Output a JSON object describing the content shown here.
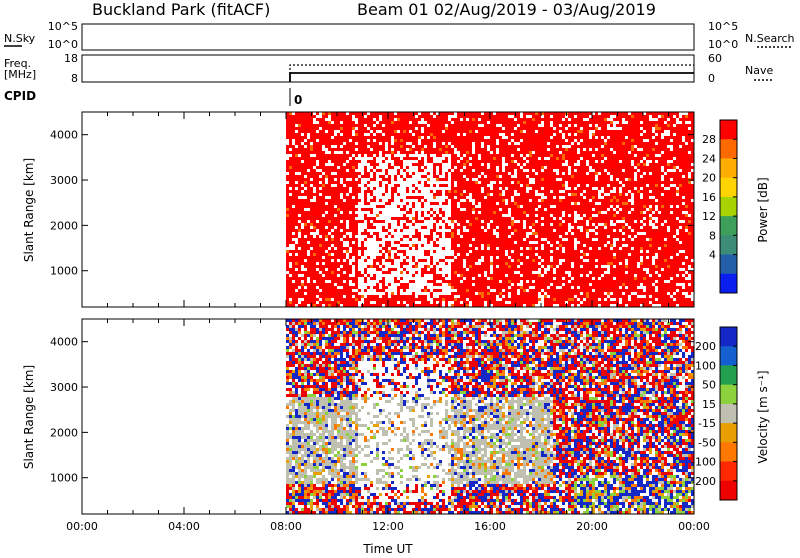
{
  "header": {
    "station": "Buckland Park (fitACF)",
    "beam_info": "Beam 01 02/Aug/2019 - 03/Aug/2019"
  },
  "top_panels": {
    "nsky": {
      "label": "N.Sky",
      "ticks_left": [
        "10^5",
        "10^0"
      ],
      "ticks_right": [
        "10^5",
        "10^0"
      ],
      "right_label": "N.Search"
    },
    "freq": {
      "label_line1": "Freq.",
      "label_line2": "[MHz]",
      "ticks_left": [
        "18",
        "8"
      ],
      "ticks_right": [
        "60",
        "0"
      ],
      "right_label": "Nave"
    },
    "cpid": {
      "label": "CPID",
      "value": "0"
    }
  },
  "chart_data": [
    {
      "type": "heatmap",
      "name": "power",
      "ylabel": "Slant Range [km]",
      "ylim": [
        200,
        4500
      ],
      "yticks": [
        1000,
        2000,
        3000,
        4000
      ],
      "xlabel": "",
      "xlim_hours": [
        0,
        24
      ],
      "data_start_hour": 8,
      "colorbar": {
        "label": "Power [dB]",
        "ticks": [
          "28",
          "24",
          "20",
          "16",
          "12",
          "8",
          "4"
        ],
        "colors": [
          "#ff0000",
          "#ff6a00",
          "#ffae00",
          "#ffd400",
          "#a7d400",
          "#3da05a",
          "#3c8c78",
          "#235fa8",
          "#0b1ef0"
        ]
      },
      "dominant_color": "#ff0000"
    },
    {
      "type": "heatmap",
      "name": "velocity",
      "ylabel": "Slant Range [km]",
      "ylim": [
        200,
        4500
      ],
      "yticks": [
        1000,
        2000,
        3000,
        4000
      ],
      "xlabel": "Time UT",
      "xticks": [
        "00:00",
        "04:00",
        "08:00",
        "12:00",
        "16:00",
        "20:00",
        "00:00"
      ],
      "xlim_hours": [
        0,
        24
      ],
      "data_start_hour": 8,
      "colorbar": {
        "label": "Velocity [m s⁻¹]",
        "ticks": [
          "200",
          "100",
          "50",
          "15",
          "-15",
          "-50",
          "-100",
          "-200"
        ],
        "colors": [
          "#1428c8",
          "#1460d0",
          "#22a050",
          "#8cd23c",
          "#c0c0b0",
          "#e8a000",
          "#ff7800",
          "#ff2800",
          "#ee0000"
        ]
      }
    }
  ]
}
